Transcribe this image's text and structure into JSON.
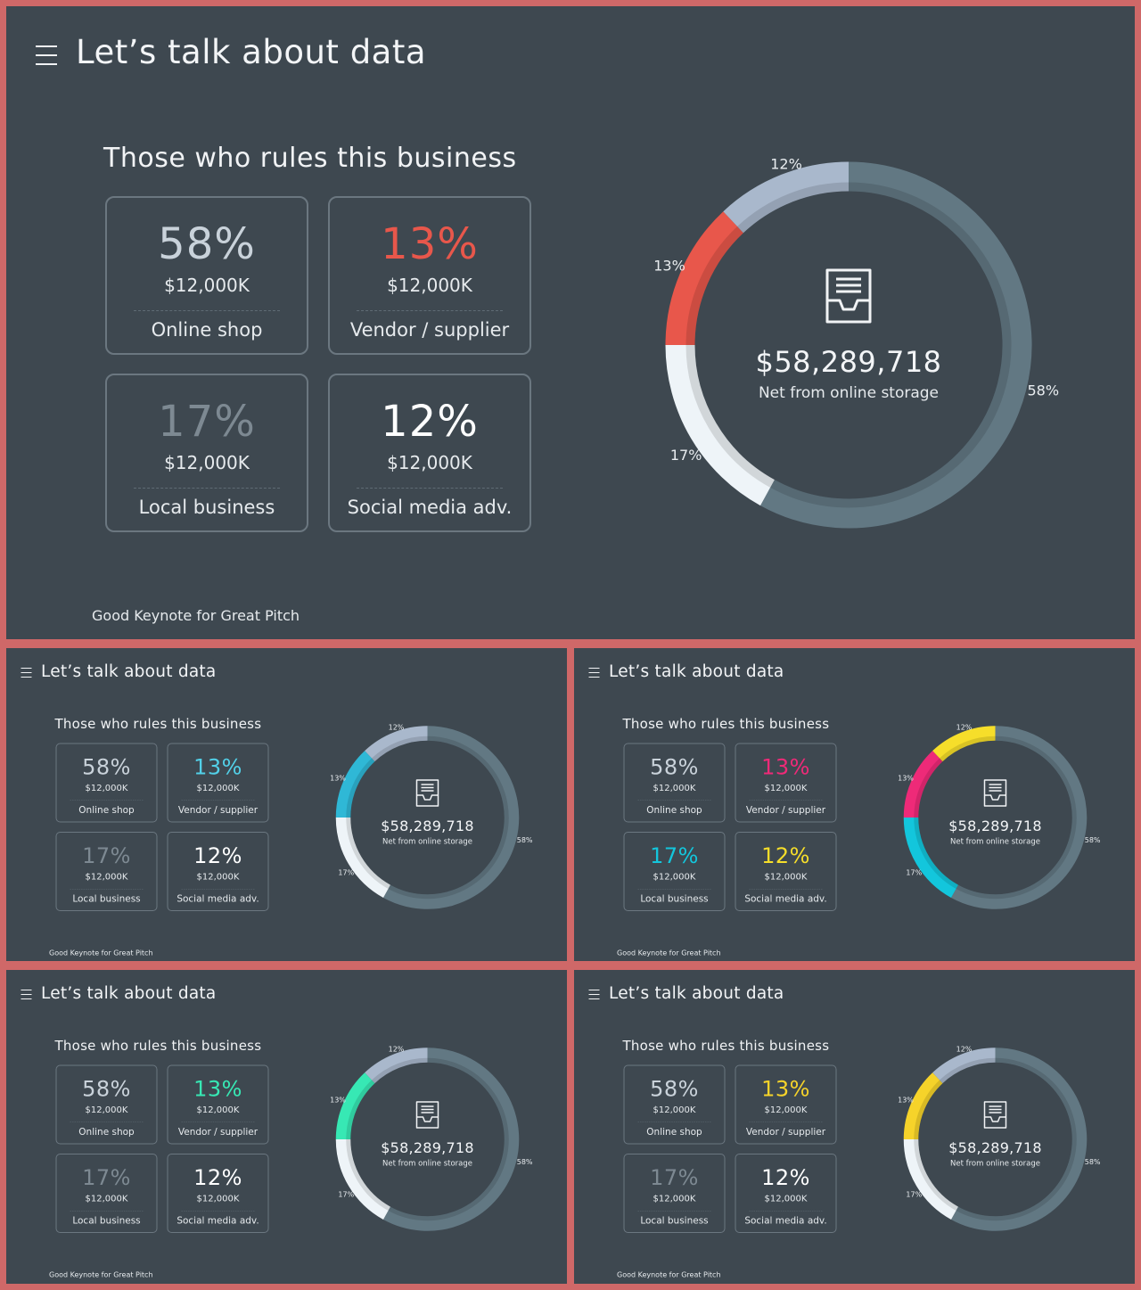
{
  "header": {
    "title": "Let’s talk about data"
  },
  "subtitle": "Those who rules this business",
  "footer": "Good Keynote for Great Pitch",
  "center": {
    "total": "$58,289,718",
    "caption": "Net from  online storage"
  },
  "cards": [
    {
      "pct": "58%",
      "amount": "$12,000K",
      "label": "Online shop"
    },
    {
      "pct": "13%",
      "amount": "$12,000K",
      "label": "Vendor / supplier"
    },
    {
      "pct": "17%",
      "amount": "$12,000K",
      "label": "Local business"
    },
    {
      "pct": "12%",
      "amount": "$12,000K",
      "label": "Social media adv."
    }
  ],
  "chart_data": {
    "type": "pie",
    "style": "donut",
    "categories": [
      "Online shop",
      "Vendor / supplier",
      "Local business",
      "Social media adv."
    ],
    "values": [
      58,
      13,
      17,
      12
    ],
    "slice_labels": [
      "58%",
      "13%",
      "17%",
      "12%"
    ]
  },
  "themes": [
    {
      "name": "red",
      "seg58": "#627883",
      "seg13": "#e8574b",
      "seg17": "#eef4f8",
      "seg12": "#a9b8cc",
      "pct58": "#c9d2da",
      "pct13": "#e8574b",
      "pct17": "#7d8992",
      "pct12": "#ffffff"
    },
    {
      "name": "cyan",
      "seg58": "#627883",
      "seg13": "#2fb8d6",
      "seg17": "#eef4f8",
      "seg12": "#a9b8cc",
      "pct58": "#c9d2da",
      "pct13": "#52d0e8",
      "pct17": "#7d8992",
      "pct12": "#ffffff"
    },
    {
      "name": "multi",
      "seg58": "#627883",
      "seg13": "#ee2a78",
      "seg17": "#13c6dc",
      "seg12": "#f6de2a",
      "pct58": "#c9d2da",
      "pct13": "#ee2a78",
      "pct17": "#13c6dc",
      "pct12": "#f6de2a"
    },
    {
      "name": "mint",
      "seg58": "#627883",
      "seg13": "#37e8b4",
      "seg17": "#eef4f8",
      "seg12": "#a9b8cc",
      "pct58": "#c9d2da",
      "pct13": "#37e8b4",
      "pct17": "#7d8992",
      "pct12": "#ffffff"
    },
    {
      "name": "yellow",
      "seg58": "#627883",
      "seg13": "#f6d32a",
      "seg17": "#eef4f8",
      "seg12": "#a9b8cc",
      "pct58": "#c9d2da",
      "pct13": "#f6d32a",
      "pct17": "#7d8992",
      "pct12": "#ffffff"
    }
  ]
}
